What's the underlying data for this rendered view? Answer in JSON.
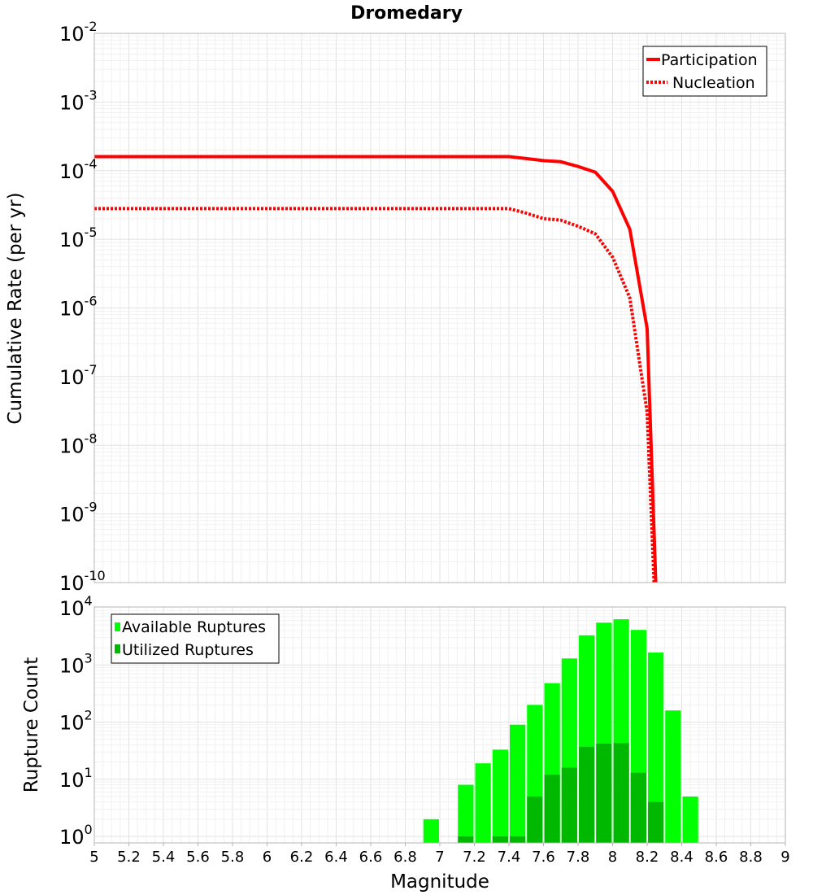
{
  "chart_data": [
    {
      "type": "line",
      "title": "Dromedary",
      "xlabel": "",
      "ylabel": "Cumulative Rate (per yr)",
      "yscale": "log",
      "xlim": [
        5,
        9
      ],
      "ylim_exponents": [
        -10,
        -2
      ],
      "ytick_base": "10",
      "yticks": [
        {
          "exp": -2,
          "sup": "-2"
        },
        {
          "exp": -3,
          "sup": "-3"
        },
        {
          "exp": -4,
          "sup": "-4"
        },
        {
          "exp": -5,
          "sup": "-5"
        },
        {
          "exp": -6,
          "sup": "-6"
        },
        {
          "exp": -7,
          "sup": "-7"
        },
        {
          "exp": -8,
          "sup": "-8"
        },
        {
          "exp": -9,
          "sup": "-9"
        },
        {
          "exp": -10,
          "sup": "-10"
        }
      ],
      "legend_position": "top-right",
      "series": [
        {
          "name": "Participation",
          "color": "#ff0000",
          "style": "solid",
          "x": [
            5.0,
            7.4,
            7.5,
            7.6,
            7.7,
            7.8,
            7.9,
            8.0,
            8.1,
            8.2,
            8.25
          ],
          "y": [
            0.00016,
            0.00016,
            0.00015,
            0.00014,
            0.000135,
            0.000115,
            9.5e-05,
            5e-05,
            1.4e-05,
            5e-07,
            1e-10
          ]
        },
        {
          "name": "Nucleation",
          "color": "#ff0000",
          "style": "dotted",
          "x": [
            5.0,
            7.4,
            7.5,
            7.6,
            7.7,
            7.8,
            7.9,
            8.0,
            8.1,
            8.2,
            8.24
          ],
          "y": [
            2.8e-05,
            2.8e-05,
            2.4e-05,
            2e-05,
            1.9e-05,
            1.55e-05,
            1.2e-05,
            5.5e-06,
            1.4e-06,
            3e-08,
            1e-10
          ]
        }
      ]
    },
    {
      "type": "bar",
      "title": "",
      "xlabel": "Magnitude",
      "ylabel": "Rupture Count",
      "yscale": "log",
      "xlim": [
        5,
        9
      ],
      "ylim_exponents": [
        0,
        4
      ],
      "ytick_base": "10",
      "yticks": [
        {
          "exp": 0,
          "sup": "0"
        },
        {
          "exp": 1,
          "sup": "1"
        },
        {
          "exp": 2,
          "sup": "2"
        },
        {
          "exp": 3,
          "sup": "3"
        },
        {
          "exp": 4,
          "sup": "4"
        }
      ],
      "xticks": [
        "5",
        "5.2",
        "5.4",
        "5.6",
        "5.8",
        "6",
        "6.2",
        "6.4",
        "6.6",
        "6.8",
        "7",
        "7.2",
        "7.4",
        "7.6",
        "7.8",
        "8",
        "8.2",
        "8.4",
        "8.6",
        "8.8",
        "9"
      ],
      "bin_width": 0.1,
      "legend_position": "top-left",
      "series": [
        {
          "name": "Available Ruptures",
          "color": "#00ff00",
          "x": [
            6.95,
            7.15,
            7.25,
            7.35,
            7.45,
            7.55,
            7.65,
            7.75,
            7.85,
            7.95,
            8.05,
            8.15,
            8.25,
            8.35,
            8.45
          ],
          "values": [
            2,
            8,
            19,
            33,
            90,
            200,
            480,
            1300,
            3300,
            5500,
            6300,
            4100,
            1650,
            160,
            5
          ]
        },
        {
          "name": "Utilized Ruptures",
          "color": "#00b800",
          "x": [
            7.15,
            7.35,
            7.45,
            7.55,
            7.65,
            7.75,
            7.85,
            7.95,
            8.05,
            8.15,
            8.25
          ],
          "values": [
            1,
            1,
            1,
            5,
            12,
            16,
            37,
            42,
            43,
            13,
            4
          ]
        }
      ]
    }
  ]
}
